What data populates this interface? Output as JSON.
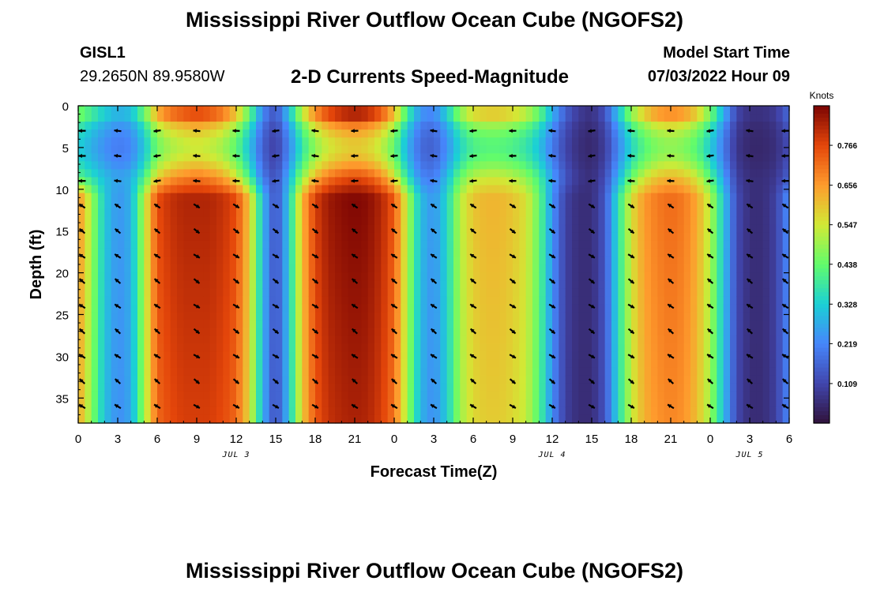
{
  "page": {
    "title_top": "Mississippi River Outflow Ocean Cube (NGOFS2)",
    "title_bottom": "Mississippi River Outflow Ocean Cube (NGOFS2)"
  },
  "station": {
    "id": "GISL1",
    "coords": "29.2650N  89.9580W"
  },
  "header": {
    "subtitle": "2-D Currents Speed-Magnitude",
    "model_start_label": "Model Start Time",
    "model_start_value": "07/03/2022 Hour 09"
  },
  "chart_data": {
    "type": "heatmap",
    "title": "2-D Currents Speed-Magnitude",
    "xlabel": "Forecast Time(Z)",
    "ylabel": "Depth (ft)",
    "x_range_hours": [
      0,
      54
    ],
    "x_ticks": [
      {
        "hour": 0,
        "label": "0"
      },
      {
        "hour": 3,
        "label": "3"
      },
      {
        "hour": 6,
        "label": "6"
      },
      {
        "hour": 9,
        "label": "9"
      },
      {
        "hour": 12,
        "label": "12"
      },
      {
        "hour": 15,
        "label": "15"
      },
      {
        "hour": 18,
        "label": "18"
      },
      {
        "hour": 21,
        "label": "21"
      },
      {
        "hour": 24,
        "label": "0"
      },
      {
        "hour": 27,
        "label": "3"
      },
      {
        "hour": 30,
        "label": "6"
      },
      {
        "hour": 33,
        "label": "9"
      },
      {
        "hour": 36,
        "label": "12"
      },
      {
        "hour": 39,
        "label": "15"
      },
      {
        "hour": 42,
        "label": "18"
      },
      {
        "hour": 45,
        "label": "21"
      },
      {
        "hour": 48,
        "label": "0"
      },
      {
        "hour": 51,
        "label": "3"
      },
      {
        "hour": 54,
        "label": "6"
      }
    ],
    "date_labels": [
      {
        "hour": 12,
        "label": "JUL 3"
      },
      {
        "hour": 36,
        "label": "JUL 4"
      },
      {
        "hour": 51,
        "label": "JUL 5"
      }
    ],
    "y_range_ft": [
      0,
      38
    ],
    "y_ticks": [
      0,
      5,
      10,
      15,
      20,
      25,
      30,
      35
    ],
    "colorbar": {
      "title": "Knots",
      "range": [
        0,
        0.875
      ],
      "ticks": [
        0.109,
        0.219,
        0.328,
        0.438,
        0.547,
        0.656,
        0.766
      ],
      "colors": [
        "#30123b",
        "#4146ad",
        "#4686fb",
        "#1bd0d5",
        "#62fc6b",
        "#d2e935",
        "#fe9b2d",
        "#e4460a",
        "#7a0403"
      ]
    },
    "speed_series": {
      "description": "Current speed (knots) by forecast hour; surface and sub-surface layers",
      "hours": [
        0,
        1,
        2,
        3,
        4,
        5,
        6,
        7,
        8,
        9,
        10,
        11,
        12,
        13,
        14,
        15,
        16,
        17,
        18,
        19,
        20,
        21,
        22,
        23,
        24,
        25,
        26,
        27,
        28,
        29,
        30,
        31,
        32,
        33,
        34,
        35,
        36,
        37,
        38,
        39,
        40,
        41,
        42,
        43,
        44,
        45,
        46,
        47,
        48,
        49,
        50,
        51,
        52,
        53,
        54
      ],
      "surface_0_8ft": [
        0.42,
        0.36,
        0.3,
        0.26,
        0.28,
        0.4,
        0.58,
        0.65,
        0.68,
        0.7,
        0.68,
        0.64,
        0.55,
        0.4,
        0.2,
        0.12,
        0.28,
        0.48,
        0.62,
        0.7,
        0.74,
        0.76,
        0.74,
        0.68,
        0.56,
        0.36,
        0.22,
        0.2,
        0.3,
        0.44,
        0.52,
        0.54,
        0.54,
        0.52,
        0.48,
        0.4,
        0.26,
        0.14,
        0.08,
        0.06,
        0.12,
        0.28,
        0.44,
        0.54,
        0.6,
        0.62,
        0.6,
        0.54,
        0.42,
        0.26,
        0.1,
        0.06,
        0.06,
        0.08,
        0.16
      ],
      "subsurface_10_38ft": [
        0.68,
        0.5,
        0.32,
        0.24,
        0.28,
        0.52,
        0.76,
        0.8,
        0.82,
        0.82,
        0.82,
        0.8,
        0.76,
        0.6,
        0.3,
        0.12,
        0.32,
        0.62,
        0.78,
        0.84,
        0.86,
        0.87,
        0.86,
        0.82,
        0.74,
        0.52,
        0.3,
        0.24,
        0.34,
        0.52,
        0.6,
        0.62,
        0.62,
        0.6,
        0.56,
        0.44,
        0.24,
        0.1,
        0.06,
        0.06,
        0.14,
        0.36,
        0.56,
        0.66,
        0.7,
        0.72,
        0.7,
        0.64,
        0.52,
        0.32,
        0.12,
        0.06,
        0.06,
        0.1,
        0.24
      ]
    },
    "vector_depths_ft": [
      3,
      6,
      9,
      12,
      15,
      18,
      21,
      24,
      27,
      30,
      33,
      36
    ],
    "vector_hours": [
      0,
      3,
      6,
      9,
      12,
      15,
      18,
      21,
      24,
      27,
      30,
      33,
      36,
      39,
      42,
      45,
      48,
      51,
      54
    ]
  }
}
